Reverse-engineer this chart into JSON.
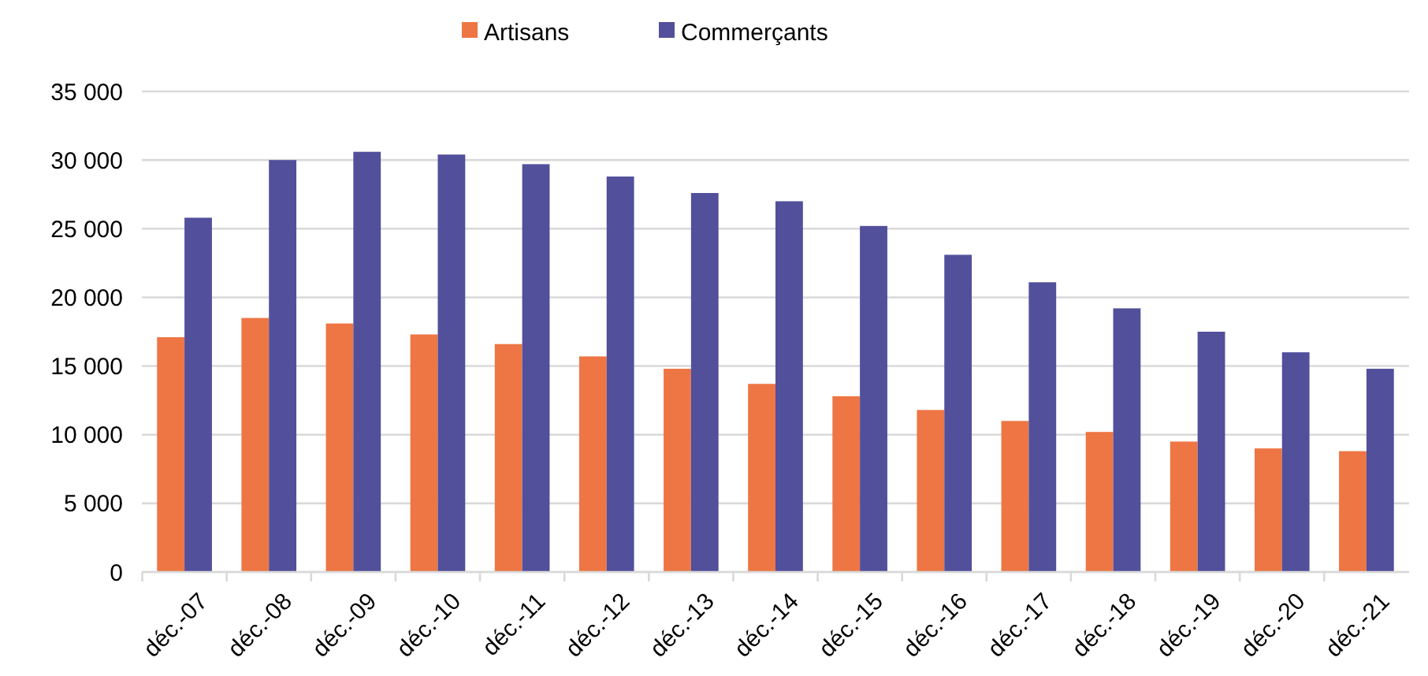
{
  "chart_data": {
    "type": "bar",
    "categories": [
      "déc.-07",
      "déc.-08",
      "déc.-09",
      "déc.-10",
      "déc.-11",
      "déc.-12",
      "déc.-13",
      "déc.-14",
      "déc.-15",
      "déc.-16",
      "déc.-17",
      "déc.-18",
      "déc.-19",
      "déc.-20",
      "déc.-21"
    ],
    "series": [
      {
        "name": "Artisans",
        "color": "#ed7644",
        "values": [
          17100,
          18500,
          18100,
          17300,
          16600,
          15700,
          14800,
          13700,
          12800,
          11800,
          11000,
          10200,
          9500,
          9000,
          8800
        ]
      },
      {
        "name": "Commerçants",
        "color": "#524f9b",
        "values": [
          25800,
          30000,
          30600,
          30400,
          29700,
          28800,
          27600,
          27000,
          25200,
          23100,
          21100,
          19200,
          17500,
          16000,
          14800
        ]
      }
    ],
    "ylim": [
      0,
      35000
    ],
    "yticks": [
      0,
      {
        "value": 5000,
        "label": "5 000"
      },
      {
        "value": 10000,
        "label": "10 000"
      },
      {
        "value": 15000,
        "label": "15 000"
      },
      {
        "value": 20000,
        "label": "20 000"
      },
      {
        "value": 25000,
        "label": "25 000"
      },
      {
        "value": 30000,
        "label": "30 000"
      },
      {
        "value": 35000,
        "label": "35 000"
      }
    ],
    "grid": "y",
    "legend": "top"
  }
}
